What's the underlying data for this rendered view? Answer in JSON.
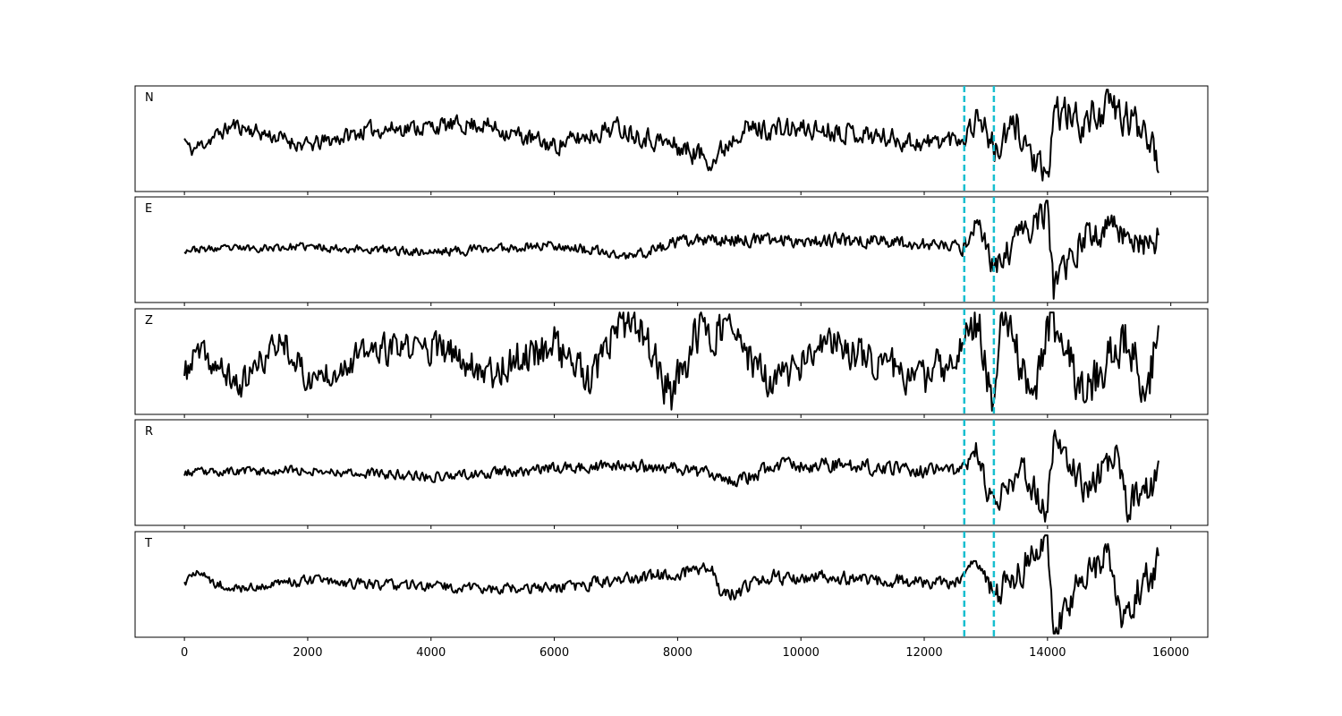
{
  "chart_data": {
    "type": "line",
    "title": "",
    "xlabel": "",
    "ylabel": "",
    "xlim": [
      -800,
      16600
    ],
    "x_ticks": [
      0,
      2000,
      4000,
      6000,
      8000,
      10000,
      12000,
      14000,
      16000
    ],
    "x_tick_labels": [
      "0",
      "2000",
      "4000",
      "6000",
      "8000",
      "10000",
      "12000",
      "14000",
      "16000"
    ],
    "grid": false,
    "trace_color": "#000000",
    "pick_color": "#17becf",
    "picks": [
      12650,
      13130
    ],
    "sample_interval": 20,
    "panels": [
      {
        "label": "N",
        "ylim": [
          -1,
          1
        ],
        "knots": [
          [
            0,
            0
          ],
          [
            100,
            -0.25
          ],
          [
            800,
            0.28
          ],
          [
            2000,
            -0.15
          ],
          [
            3000,
            0.18
          ],
          [
            4800,
            0.3
          ],
          [
            6000,
            -0.15
          ],
          [
            7000,
            0.25
          ],
          [
            8600,
            -0.42
          ],
          [
            9000,
            0.2
          ],
          [
            10600,
            0.18
          ],
          [
            12000,
            -0.1
          ],
          [
            12650,
            0.05
          ],
          [
            12900,
            0.5
          ],
          [
            13150,
            -0.3
          ],
          [
            13500,
            0.3
          ],
          [
            14000,
            -1.0
          ],
          [
            14100,
            0.6
          ],
          [
            14600,
            0.3
          ],
          [
            15000,
            0.7
          ],
          [
            15300,
            0.35
          ],
          [
            15600,
            0.3
          ],
          [
            15800,
            -0.4
          ]
        ],
        "noise": [
          [
            0,
            0.13
          ],
          [
            6000,
            0.16
          ],
          [
            8500,
            0.2
          ],
          [
            11000,
            0.18
          ],
          [
            12500,
            0.17
          ],
          [
            12650,
            0.2
          ],
          [
            13300,
            0.3
          ],
          [
            16000,
            0.35
          ]
        ],
        "seed": 11
      },
      {
        "label": "E",
        "ylim": [
          -1,
          1
        ],
        "knots": [
          [
            0,
            0
          ],
          [
            2000,
            0.06
          ],
          [
            4000,
            -0.05
          ],
          [
            6000,
            0.1
          ],
          [
            7200,
            -0.15
          ],
          [
            8000,
            0.15
          ],
          [
            8800,
            0.2
          ],
          [
            10000,
            0.2
          ],
          [
            11400,
            0.18
          ],
          [
            12000,
            0.1
          ],
          [
            12650,
            0.05
          ],
          [
            12850,
            0.65
          ],
          [
            13150,
            -0.45
          ],
          [
            13500,
            0.2
          ],
          [
            14000,
            0.82
          ],
          [
            14100,
            -0.82
          ],
          [
            14600,
            0.25
          ],
          [
            15100,
            0.5
          ],
          [
            15500,
            0.15
          ],
          [
            15800,
            0.18
          ]
        ],
        "noise": [
          [
            0,
            0.06
          ],
          [
            6000,
            0.09
          ],
          [
            8500,
            0.11
          ],
          [
            11000,
            0.12
          ],
          [
            12500,
            0.1
          ],
          [
            12650,
            0.15
          ],
          [
            13300,
            0.25
          ],
          [
            16000,
            0.3
          ]
        ],
        "seed": 23
      },
      {
        "label": "Z",
        "ylim": [
          -1,
          1
        ],
        "knots": [
          [
            0,
            -0.3
          ],
          [
            200,
            0.2
          ],
          [
            900,
            -0.5
          ],
          [
            1600,
            0.5
          ],
          [
            2000,
            -0.4
          ],
          [
            3000,
            0.2
          ],
          [
            4000,
            0.3
          ],
          [
            5000,
            -0.2
          ],
          [
            6000,
            0.4
          ],
          [
            6600,
            -0.5
          ],
          [
            7000,
            0.65
          ],
          [
            7400,
            0.7
          ],
          [
            7900,
            -0.75
          ],
          [
            8300,
            0.55
          ],
          [
            8800,
            0.7
          ],
          [
            9500,
            -0.5
          ],
          [
            10500,
            0.4
          ],
          [
            12000,
            -0.4
          ],
          [
            12600,
            0.3
          ],
          [
            12900,
            0.85
          ],
          [
            13100,
            -0.85
          ],
          [
            13250,
            0.85
          ],
          [
            13800,
            -0.7
          ],
          [
            14000,
            0.85
          ],
          [
            14600,
            -0.6
          ],
          [
            15300,
            0.5
          ],
          [
            15600,
            -0.8
          ],
          [
            15800,
            0.75
          ]
        ],
        "noise": [
          [
            0,
            0.25
          ],
          [
            4000,
            0.28
          ],
          [
            6000,
            0.35
          ],
          [
            8000,
            0.38
          ],
          [
            10000,
            0.3
          ],
          [
            12000,
            0.32
          ],
          [
            13000,
            0.4
          ],
          [
            16000,
            0.4
          ]
        ],
        "seed": 37
      },
      {
        "label": "R",
        "ylim": [
          -1,
          1
        ],
        "knots": [
          [
            0,
            0
          ],
          [
            2000,
            0.05
          ],
          [
            4000,
            -0.08
          ],
          [
            6000,
            0.08
          ],
          [
            7000,
            0.12
          ],
          [
            8000,
            0.1
          ],
          [
            9000,
            -0.15
          ],
          [
            9600,
            0.15
          ],
          [
            10600,
            0.15
          ],
          [
            12000,
            0.05
          ],
          [
            12650,
            0.05
          ],
          [
            12850,
            0.55
          ],
          [
            13000,
            -0.3
          ],
          [
            13150,
            -0.6
          ],
          [
            13600,
            0.1
          ],
          [
            14000,
            -0.88
          ],
          [
            14100,
            0.85
          ],
          [
            14600,
            -0.3
          ],
          [
            15100,
            0.3
          ],
          [
            15300,
            -0.65
          ],
          [
            15800,
            -0.1
          ]
        ],
        "noise": [
          [
            0,
            0.07
          ],
          [
            6000,
            0.1
          ],
          [
            8500,
            0.12
          ],
          [
            11000,
            0.13
          ],
          [
            12500,
            0.12
          ],
          [
            12650,
            0.15
          ],
          [
            13300,
            0.25
          ],
          [
            16000,
            0.3
          ]
        ],
        "seed": 53
      },
      {
        "label": "T",
        "ylim": [
          -1,
          1
        ],
        "knots": [
          [
            0,
            0
          ],
          [
            60,
            0.12
          ],
          [
            100,
            0.25
          ],
          [
            800,
            -0.1
          ],
          [
            2000,
            0.08
          ],
          [
            4000,
            -0.05
          ],
          [
            6000,
            -0.1
          ],
          [
            7000,
            0.1
          ],
          [
            8600,
            0.3
          ],
          [
            8700,
            -0.3
          ],
          [
            9500,
            0.15
          ],
          [
            10500,
            0.15
          ],
          [
            12000,
            0.05
          ],
          [
            12650,
            0.05
          ],
          [
            12850,
            0.5
          ],
          [
            13150,
            -0.2
          ],
          [
            13500,
            0.2
          ],
          [
            14000,
            0.95
          ],
          [
            14100,
            -0.95
          ],
          [
            14600,
            0.25
          ],
          [
            15000,
            0.5
          ],
          [
            15200,
            -0.55
          ],
          [
            15800,
            0.4
          ]
        ],
        "noise": [
          [
            0,
            0.09
          ],
          [
            6000,
            0.1
          ],
          [
            8500,
            0.13
          ],
          [
            11000,
            0.12
          ],
          [
            12500,
            0.11
          ],
          [
            12650,
            0.15
          ],
          [
            13300,
            0.28
          ],
          [
            16000,
            0.32
          ]
        ],
        "seed": 71
      }
    ]
  }
}
